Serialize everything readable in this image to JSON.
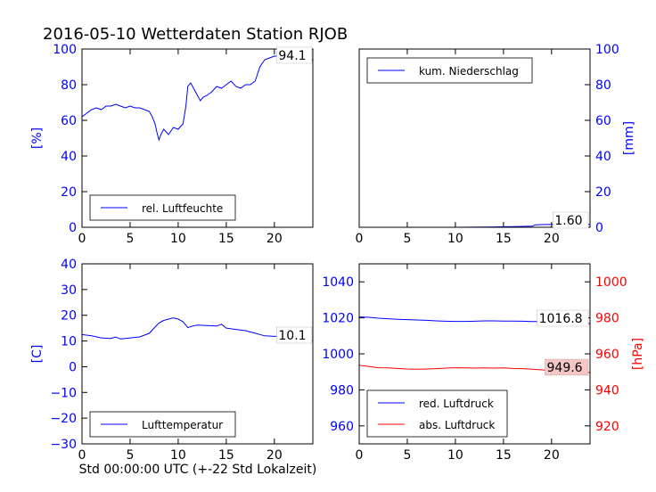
{
  "title": "2016-05-10 Wetterdaten Station RJOB",
  "xlabel": "Std 00:00:00 UTC (+-22 Std Lokalzeit)",
  "chart_data": [
    {
      "id": "humidity",
      "type": "line",
      "ylabel": "[%]",
      "xlim": [
        0,
        24
      ],
      "ylim": [
        0,
        100
      ],
      "xticks": [
        0,
        5,
        10,
        15,
        20
      ],
      "yticks": [
        0,
        20,
        40,
        60,
        80,
        100
      ],
      "tick_color": "#0000ff",
      "annotation": "94.1",
      "legend": {
        "placement": "lower-left",
        "entries": [
          {
            "name": "rel. Luftfeuchte",
            "color": "#0000ff"
          }
        ]
      },
      "series": [
        {
          "name": "rel. Luftfeuchte",
          "color": "#0000ff",
          "x": [
            0,
            0.5,
            1,
            1.5,
            2,
            2.5,
            3,
            3.5,
            4,
            4.5,
            5,
            5.5,
            6,
            6.5,
            7,
            7.3,
            7.6,
            7.8,
            8,
            8.2,
            8.5,
            9,
            9.5,
            10,
            10.5,
            10.8,
            11,
            11.3,
            11.6,
            12,
            12.3,
            12.6,
            13,
            13.5,
            14,
            14.5,
            15,
            15.5,
            16,
            16.5,
            17,
            17.5,
            18,
            18.5,
            19,
            19.5,
            20,
            20.5,
            21,
            21.5,
            22,
            22.5,
            23,
            23.5,
            24
          ],
          "y": [
            62,
            64,
            66,
            67,
            66,
            68,
            68,
            69,
            68,
            67,
            68,
            67,
            67,
            66,
            65,
            62,
            58,
            53,
            49,
            52,
            55,
            52,
            56,
            55,
            58,
            68,
            79,
            81,
            78,
            74,
            71,
            73,
            74,
            76,
            79,
            78,
            80,
            82,
            79,
            78,
            80,
            80,
            82,
            90,
            94,
            95,
            96,
            96,
            96,
            95,
            94,
            94,
            94,
            94,
            94
          ]
        }
      ]
    },
    {
      "id": "precip",
      "type": "line",
      "ylabel": "[mm]",
      "xlim": [
        0,
        24
      ],
      "ylim": [
        0,
        100
      ],
      "xticks": [
        0,
        5,
        10,
        15,
        20
      ],
      "yticks": [
        0,
        20,
        40,
        60,
        80,
        100
      ],
      "tick_color": "#0000ff",
      "annotation": "1.60",
      "legend": {
        "placement": "upper-left",
        "entries": [
          {
            "name": "kum. Niederschlag",
            "color": "#0000ff"
          }
        ]
      },
      "series": [
        {
          "name": "kum. Niederschlag",
          "color": "#0000ff",
          "x": [
            0,
            5,
            10,
            14,
            15,
            16,
            17,
            18,
            18.3,
            19,
            20,
            21,
            22,
            23,
            24
          ],
          "y": [
            0,
            0,
            0,
            0.2,
            0.3,
            0.4,
            0.5,
            0.6,
            1.4,
            1.5,
            1.6,
            1.6,
            1.6,
            1.6,
            1.6
          ]
        }
      ]
    },
    {
      "id": "temperature",
      "type": "line",
      "ylabel": "[C]",
      "xlim": [
        0,
        24
      ],
      "ylim": [
        -30,
        40
      ],
      "xticks": [
        0,
        5,
        10,
        15,
        20
      ],
      "yticks": [
        -30,
        -20,
        -10,
        0,
        10,
        20,
        30,
        40
      ],
      "ytick_labels": [
        "−30",
        "−20",
        "−10",
        "0",
        "10",
        "20",
        "30",
        "40"
      ],
      "tick_color": "#0000ff",
      "annotation": "10.1",
      "legend": {
        "placement": "lower-left",
        "entries": [
          {
            "name": "Lufttemperatur",
            "color": "#0000ff"
          }
        ]
      },
      "series": [
        {
          "name": "Lufttemperatur",
          "color": "#0000ff",
          "x": [
            0,
            1,
            2,
            3,
            3.5,
            4,
            5,
            6,
            7,
            7.5,
            8,
            8.5,
            9,
            9.5,
            10,
            10.5,
            11,
            11.5,
            12,
            13,
            14,
            14.5,
            15,
            16,
            17,
            18,
            19,
            20,
            21,
            22,
            23,
            24
          ],
          "y": [
            12.5,
            12,
            11.2,
            11,
            11.5,
            10.8,
            11.2,
            11.6,
            13,
            15,
            17,
            18,
            18.5,
            19,
            18.5,
            17.5,
            15.2,
            15.8,
            16.2,
            16,
            15.8,
            16.5,
            15,
            14.5,
            14,
            13,
            12,
            11.8,
            12,
            11.5,
            10.5,
            10.1
          ]
        }
      ]
    },
    {
      "id": "pressure",
      "type": "line",
      "ylabel": "[hPa]",
      "xlim": [
        0,
        24
      ],
      "ylim": [
        950,
        1050
      ],
      "ylim_right": [
        910,
        1010
      ],
      "xticks": [
        0,
        5,
        10,
        15,
        20
      ],
      "yticks": [
        960,
        980,
        1000,
        1020,
        1040
      ],
      "yticks_right": [
        920,
        940,
        960,
        980,
        1000
      ],
      "tick_color": "#0000ff",
      "tick_color_right": "#ff0000",
      "annotations": [
        "1016.8",
        "949.6"
      ],
      "legend": {
        "placement": "lower-left",
        "entries": [
          {
            "name": "red. Luftdruck",
            "color": "#0000ff"
          },
          {
            "name": "abs. Luftdruck",
            "color": "#ff0000"
          }
        ]
      },
      "series": [
        {
          "name": "red. Luftdruck",
          "color": "#0000ff",
          "axis": "left",
          "x": [
            0,
            1,
            2,
            3,
            4,
            5,
            6,
            7,
            8,
            9,
            10,
            11,
            12,
            13,
            14,
            15,
            16,
            17,
            18,
            19,
            20,
            21,
            22,
            23,
            24
          ],
          "y": [
            1020.5,
            1020.3,
            1019.8,
            1019.5,
            1019.2,
            1019,
            1018.8,
            1018.6,
            1018.3,
            1018.1,
            1018,
            1018,
            1018.1,
            1018.3,
            1018.3,
            1018.2,
            1018.2,
            1018.1,
            1017.9,
            1017.9,
            1017.8,
            1017.7,
            1017.5,
            1017.2,
            1016.8
          ]
        },
        {
          "name": "abs. Luftdruck",
          "color": "#ff0000",
          "axis": "right",
          "x": [
            0,
            1,
            2,
            3,
            4,
            5,
            6,
            7,
            8,
            9,
            10,
            11,
            12,
            13,
            14,
            15,
            16,
            17,
            18,
            19,
            20,
            21,
            22,
            23,
            24
          ],
          "y": [
            953.6,
            953,
            952.3,
            952.2,
            951.9,
            951.6,
            951.5,
            951.6,
            951.8,
            952.1,
            952.3,
            952.2,
            952.1,
            952.2,
            952.1,
            952.2,
            951.9,
            951.8,
            951.5,
            951.1,
            950.8,
            950.6,
            950.4,
            950.1,
            949.6
          ]
        }
      ]
    }
  ]
}
